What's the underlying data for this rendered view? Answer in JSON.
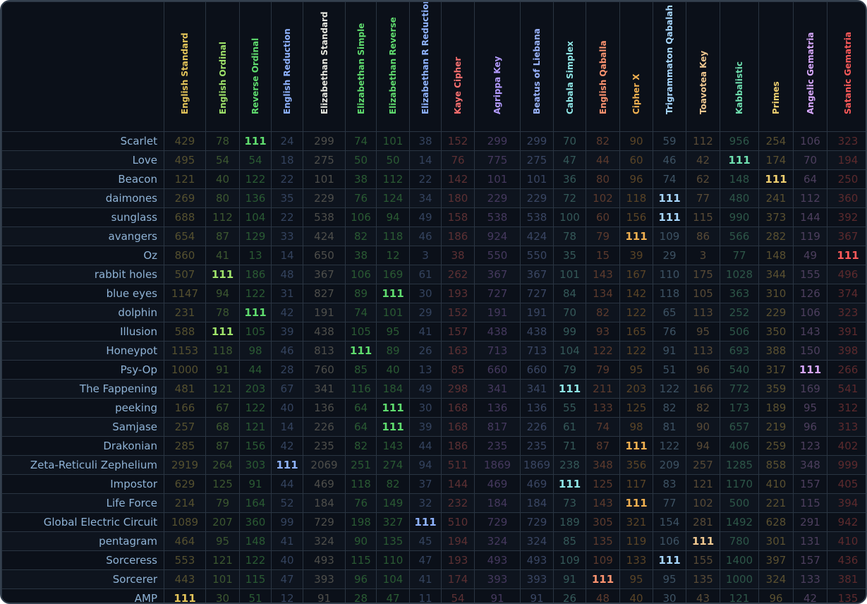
{
  "columns": [
    {
      "name": "English Standard",
      "color": "#e6c65a",
      "dim": "#55502f"
    },
    {
      "name": "English Ordinal",
      "color": "#9fe36a",
      "dim": "#3c5730"
    },
    {
      "name": "Reverse Ordinal",
      "color": "#5fdc6e",
      "dim": "#2a5a33"
    },
    {
      "name": "English Reduction",
      "color": "#8fb3ff",
      "dim": "#34435e"
    },
    {
      "name": "Elizabethan Standard",
      "color": "#e8e8e0",
      "dim": "#4e4e4a"
    },
    {
      "name": "Elizabethan Simple",
      "color": "#5fdc6e",
      "dim": "#2a5a33"
    },
    {
      "name": "Elizabethan Reverse",
      "color": "#5fdc6e",
      "dim": "#2a5a33"
    },
    {
      "name": "Elizabethan R Reduction",
      "color": "#8fb3ff",
      "dim": "#34435e"
    },
    {
      "name": "Kaye Cipher",
      "color": "#ff7070",
      "dim": "#5c3033"
    },
    {
      "name": "Agrippa Key",
      "color": "#b39bff",
      "dim": "#45395e"
    },
    {
      "name": "Beatus of Liebana",
      "color": "#9ab4ff",
      "dim": "#3a4663"
    },
    {
      "name": "Cabala Simplex",
      "color": "#8fe6e6",
      "dim": "#345858"
    },
    {
      "name": "English Qaballa",
      "color": "#ff9470",
      "dim": "#5c3a2d"
    },
    {
      "name": "Cipher X",
      "color": "#f0b050",
      "dim": "#5a4426"
    },
    {
      "name": "Trigrammaton Qabalah",
      "color": "#a8d8ff",
      "dim": "#3d5263"
    },
    {
      "name": "Toavotea Key",
      "color": "#f0c890",
      "dim": "#584a36"
    },
    {
      "name": "Kabbalistic",
      "color": "#6fe0b0",
      "dim": "#2d5648"
    },
    {
      "name": "Primes",
      "color": "#f0d070",
      "dim": "#5a5030"
    },
    {
      "name": "Angelic Gematria",
      "color": "#d8a8ff",
      "dim": "#4d3f5e"
    },
    {
      "name": "Satanic Gematria",
      "color": "#ff5a5a",
      "dim": "#5c2a2d"
    }
  ],
  "rows": [
    {
      "name": "Scarlet",
      "values": [
        "429",
        "78",
        "111",
        "24",
        "299",
        "74",
        "101",
        "38",
        "152",
        "299",
        "299",
        "70",
        "82",
        "90",
        "59",
        "112",
        "956",
        "254",
        "106",
        "323"
      ]
    },
    {
      "name": "Love",
      "values": [
        "495",
        "54",
        "54",
        "18",
        "275",
        "50",
        "50",
        "14",
        "76",
        "775",
        "275",
        "47",
        "44",
        "60",
        "46",
        "42",
        "111",
        "174",
        "70",
        "194"
      ]
    },
    {
      "name": "Beacon",
      "values": [
        "121",
        "40",
        "122",
        "22",
        "101",
        "38",
        "112",
        "22",
        "142",
        "101",
        "101",
        "36",
        "80",
        "96",
        "74",
        "62",
        "148",
        "111",
        "64",
        "250"
      ]
    },
    {
      "name": "daimones",
      "values": [
        "269",
        "80",
        "136",
        "35",
        "229",
        "76",
        "124",
        "34",
        "180",
        "229",
        "229",
        "72",
        "102",
        "118",
        "111",
        "77",
        "480",
        "241",
        "112",
        "360"
      ]
    },
    {
      "name": "sunglass",
      "values": [
        "688",
        "112",
        "104",
        "22",
        "538",
        "106",
        "94",
        "49",
        "158",
        "538",
        "538",
        "100",
        "60",
        "156",
        "111",
        "115",
        "990",
        "373",
        "144",
        "392"
      ]
    },
    {
      "name": "avangers",
      "values": [
        "654",
        "87",
        "129",
        "33",
        "424",
        "82",
        "118",
        "46",
        "186",
        "924",
        "424",
        "78",
        "79",
        "111",
        "109",
        "86",
        "566",
        "282",
        "119",
        "367"
      ]
    },
    {
      "name": "Oz",
      "values": [
        "860",
        "41",
        "13",
        "14",
        "650",
        "38",
        "12",
        "3",
        "38",
        "550",
        "550",
        "35",
        "15",
        "39",
        "29",
        "3",
        "77",
        "148",
        "49",
        "111"
      ]
    },
    {
      "name": "rabbit holes",
      "values": [
        "507",
        "111",
        "186",
        "48",
        "367",
        "106",
        "169",
        "61",
        "262",
        "367",
        "367",
        "101",
        "143",
        "167",
        "110",
        "175",
        "1028",
        "344",
        "155",
        "496"
      ]
    },
    {
      "name": "blue eyes",
      "values": [
        "1147",
        "94",
        "122",
        "31",
        "827",
        "89",
        "111",
        "30",
        "193",
        "727",
        "727",
        "84",
        "134",
        "142",
        "118",
        "105",
        "363",
        "310",
        "126",
        "374"
      ]
    },
    {
      "name": "dolphin",
      "values": [
        "231",
        "78",
        "111",
        "42",
        "191",
        "74",
        "101",
        "29",
        "152",
        "191",
        "191",
        "70",
        "82",
        "122",
        "65",
        "113",
        "252",
        "229",
        "106",
        "323"
      ]
    },
    {
      "name": "Illusion",
      "values": [
        "588",
        "111",
        "105",
        "39",
        "438",
        "105",
        "95",
        "41",
        "157",
        "438",
        "438",
        "99",
        "93",
        "165",
        "76",
        "95",
        "506",
        "350",
        "143",
        "391"
      ]
    },
    {
      "name": "Honeypot",
      "values": [
        "1153",
        "118",
        "98",
        "46",
        "813",
        "111",
        "89",
        "26",
        "163",
        "713",
        "713",
        "104",
        "122",
        "122",
        "91",
        "113",
        "693",
        "388",
        "150",
        "398"
      ]
    },
    {
      "name": "Psy-Op",
      "values": [
        "1000",
        "91",
        "44",
        "28",
        "760",
        "85",
        "40",
        "13",
        "85",
        "660",
        "660",
        "79",
        "79",
        "95",
        "51",
        "96",
        "540",
        "317",
        "111",
        "266"
      ]
    },
    {
      "name": "The Fappening",
      "values": [
        "481",
        "121",
        "203",
        "67",
        "341",
        "116",
        "184",
        "49",
        "298",
        "341",
        "341",
        "111",
        "211",
        "203",
        "122",
        "166",
        "772",
        "359",
        "169",
        "541"
      ]
    },
    {
      "name": "peeking",
      "values": [
        "166",
        "67",
        "122",
        "40",
        "136",
        "64",
        "111",
        "30",
        "168",
        "136",
        "136",
        "55",
        "133",
        "125",
        "82",
        "82",
        "173",
        "189",
        "95",
        "312"
      ]
    },
    {
      "name": "Samjase",
      "values": [
        "257",
        "68",
        "121",
        "14",
        "226",
        "64",
        "111",
        "39",
        "168",
        "817",
        "226",
        "61",
        "74",
        "98",
        "81",
        "90",
        "657",
        "219",
        "96",
        "313"
      ]
    },
    {
      "name": "Drakonian",
      "values": [
        "285",
        "87",
        "156",
        "42",
        "235",
        "82",
        "143",
        "44",
        "186",
        "235",
        "235",
        "71",
        "87",
        "111",
        "122",
        "94",
        "406",
        "259",
        "123",
        "402"
      ]
    },
    {
      "name": "Zeta-Reticuli Zephelium",
      "values": [
        "2919",
        "264",
        "303",
        "111",
        "2069",
        "251",
        "274",
        "94",
        "511",
        "1869",
        "1869",
        "238",
        "348",
        "356",
        "209",
        "257",
        "1285",
        "858",
        "348",
        "999"
      ]
    },
    {
      "name": "Impostor",
      "values": [
        "629",
        "125",
        "91",
        "44",
        "469",
        "118",
        "82",
        "37",
        "144",
        "469",
        "469",
        "111",
        "125",
        "117",
        "83",
        "121",
        "1170",
        "410",
        "157",
        "405"
      ]
    },
    {
      "name": "Life Force",
      "values": [
        "214",
        "79",
        "164",
        "52",
        "184",
        "76",
        "149",
        "32",
        "232",
        "184",
        "184",
        "73",
        "143",
        "111",
        "77",
        "102",
        "500",
        "221",
        "115",
        "394"
      ]
    },
    {
      "name": "Global Electric Circuit",
      "values": [
        "1089",
        "207",
        "360",
        "99",
        "729",
        "198",
        "327",
        "111",
        "510",
        "729",
        "729",
        "189",
        "305",
        "321",
        "154",
        "281",
        "1492",
        "628",
        "291",
        "942"
      ]
    },
    {
      "name": "pentagram",
      "values": [
        "464",
        "95",
        "148",
        "41",
        "324",
        "90",
        "135",
        "45",
        "194",
        "324",
        "324",
        "85",
        "135",
        "119",
        "106",
        "111",
        "780",
        "301",
        "131",
        "410"
      ]
    },
    {
      "name": "Sorceress",
      "values": [
        "553",
        "121",
        "122",
        "40",
        "493",
        "115",
        "110",
        "47",
        "193",
        "493",
        "493",
        "109",
        "109",
        "133",
        "111",
        "155",
        "1400",
        "397",
        "157",
        "436"
      ]
    },
    {
      "name": "Sorcerer",
      "values": [
        "443",
        "101",
        "115",
        "47",
        "393",
        "96",
        "104",
        "41",
        "174",
        "393",
        "393",
        "91",
        "111",
        "95",
        "95",
        "135",
        "1000",
        "324",
        "133",
        "381"
      ]
    },
    {
      "name": "AMP",
      "values": [
        "111",
        "30",
        "51",
        "12",
        "91",
        "28",
        "47",
        "11",
        "54",
        "91",
        "91",
        "26",
        "48",
        "40",
        "30",
        "43",
        "121",
        "96",
        "42",
        "135"
      ]
    }
  ],
  "highlight_value": "111",
  "name_color": "#8fb3d6"
}
